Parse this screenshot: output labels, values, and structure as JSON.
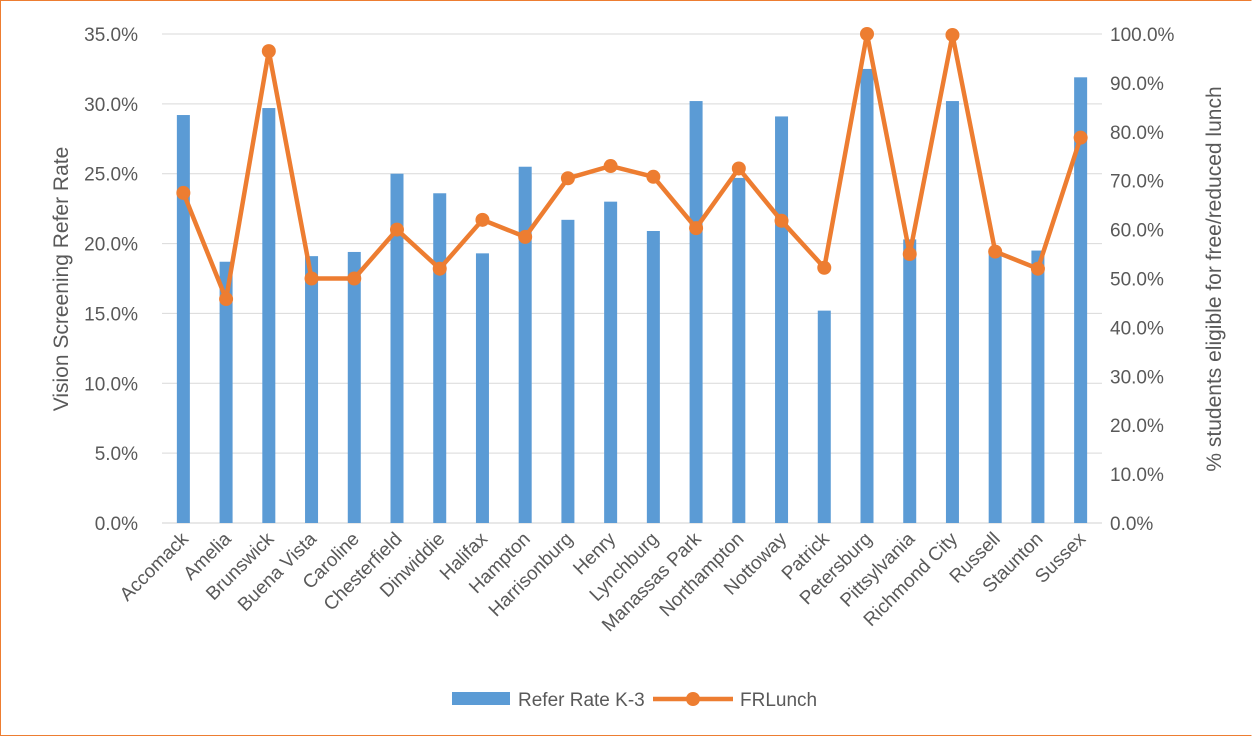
{
  "chart_data": {
    "type": "bar",
    "categories": [
      "Accomack",
      "Amelia",
      "Brunswick",
      "Buena Vista",
      "Caroline",
      "Chesterfield",
      "Dinwiddie",
      "Halifax",
      "Hampton",
      "Harrisonburg",
      "Henry",
      "Lynchburg",
      "Manassas Park",
      "Northampton",
      "Nottoway",
      "Patrick",
      "Petersburg",
      "Pittsylvania",
      "Richmond City",
      "Russell",
      "Staunton",
      "Sussex"
    ],
    "series": [
      {
        "name": "Refer Rate K-3",
        "type": "bar",
        "axis": "left",
        "color": "#5B9BD5",
        "values": [
          29.2,
          18.7,
          29.7,
          19.1,
          19.4,
          25.0,
          23.6,
          19.3,
          25.5,
          21.7,
          23.0,
          20.9,
          30.2,
          24.7,
          29.1,
          15.2,
          32.5,
          20.3,
          30.2,
          19.5,
          19.5,
          31.9
        ]
      },
      {
        "name": "FRLunch",
        "type": "line",
        "axis": "right",
        "color": "#ED7D31",
        "values": [
          67.5,
          45.8,
          96.5,
          50.0,
          50.0,
          60.0,
          52.0,
          62.0,
          58.5,
          70.5,
          73.0,
          70.8,
          60.3,
          72.5,
          61.8,
          52.2,
          100.0,
          55.0,
          99.8,
          55.5,
          52.0,
          78.8
        ]
      }
    ],
    "ylabel": "Vision Screening Refer Rate",
    "y2label": "% students eligible for free/reduced lunch",
    "ylim": [
      0,
      35
    ],
    "y2lim": [
      0,
      100
    ],
    "yticks": [
      "0.0%",
      "5.0%",
      "10.0%",
      "15.0%",
      "20.0%",
      "25.0%",
      "30.0%",
      "35.0%"
    ],
    "y2ticks": [
      "0.0%",
      "10.0%",
      "20.0%",
      "30.0%",
      "40.0%",
      "50.0%",
      "60.0%",
      "70.0%",
      "80.0%",
      "90.0%",
      "100.0%"
    ],
    "grid": true,
    "legend_position": "bottom"
  },
  "colors": {
    "bar": "#5B9BD5",
    "line": "#ED7D31",
    "grid": "#D9D9D9",
    "text": "#595959",
    "border": "#ED7D31"
  }
}
